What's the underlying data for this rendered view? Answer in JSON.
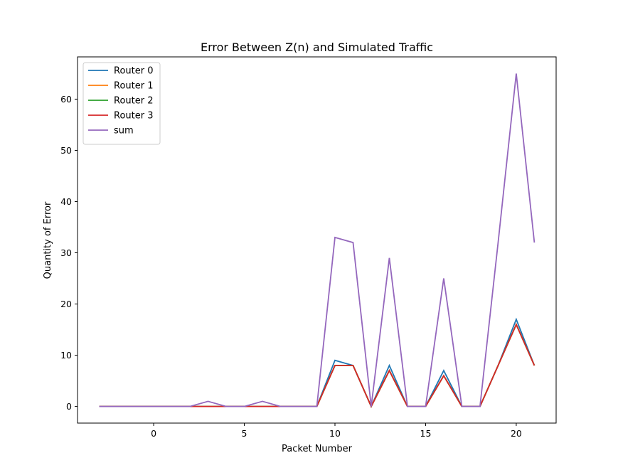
{
  "chart_data": {
    "type": "line",
    "title": "Error Between Z(n) and Simulated Traffic",
    "xlabel": "Packet Number",
    "ylabel": "Quantity of Error",
    "xlim": [
      -4.2,
      22.2
    ],
    "ylim": [
      -3.25,
      68.25
    ],
    "xticks": [
      0,
      5,
      10,
      15,
      20
    ],
    "yticks": [
      0,
      10,
      20,
      30,
      40,
      50,
      60
    ],
    "grid": false,
    "legend": "upper left",
    "x": [
      -3,
      -2,
      -1,
      0,
      1,
      2,
      3,
      4,
      5,
      6,
      7,
      8,
      9,
      10,
      11,
      12,
      13,
      14,
      15,
      16,
      17,
      18,
      19,
      20,
      21
    ],
    "series": [
      {
        "name": "Router 0",
        "color": "#1f77b4",
        "values": [
          0,
          0,
          0,
          0,
          0,
          0,
          0,
          0,
          0,
          0,
          0,
          0,
          0,
          9,
          8,
          0,
          8,
          0,
          0,
          7,
          0,
          0,
          8,
          17,
          8
        ]
      },
      {
        "name": "Router 1",
        "color": "#ff7f0e",
        "values": [
          0,
          0,
          0,
          0,
          0,
          0,
          0,
          0,
          0,
          0,
          0,
          0,
          0,
          8,
          8,
          0,
          7,
          0,
          0,
          6,
          0,
          0,
          8,
          16,
          8
        ]
      },
      {
        "name": "Router 2",
        "color": "#2ca02c",
        "values": [
          0,
          0,
          0,
          0,
          0,
          0,
          0,
          0,
          0,
          0,
          0,
          0,
          0,
          8,
          8,
          0,
          7,
          0,
          0,
          6,
          0,
          0,
          8,
          16,
          8
        ]
      },
      {
        "name": "Router 3",
        "color": "#d62728",
        "values": [
          0,
          0,
          0,
          0,
          0,
          0,
          0,
          0,
          0,
          0,
          0,
          0,
          0,
          8,
          8,
          0,
          7,
          0,
          0,
          6,
          0,
          0,
          8,
          16,
          8
        ]
      },
      {
        "name": "sum",
        "color": "#9467bd",
        "values": [
          0,
          0,
          0,
          0,
          0,
          0,
          1,
          0,
          0,
          1,
          0,
          0,
          0,
          33,
          32,
          0,
          29,
          0,
          0,
          25,
          0,
          0,
          32,
          65,
          32
        ]
      }
    ]
  }
}
